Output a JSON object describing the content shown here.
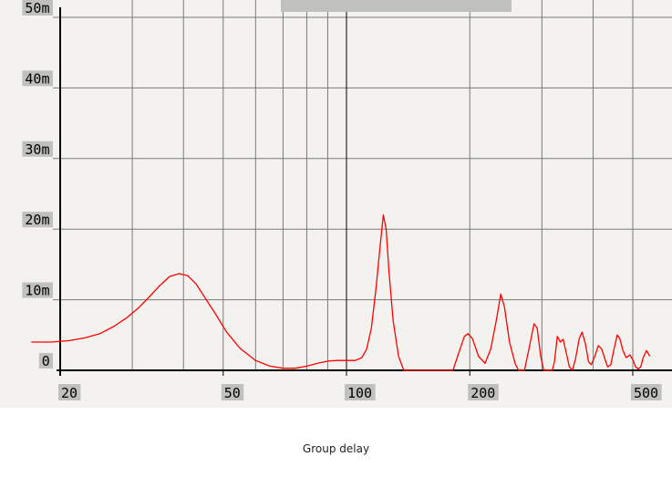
{
  "caption": "Group delay",
  "colors": {
    "background": "#f3f2ee",
    "grid": "#7a7a7a",
    "axis": "#000000",
    "series": "#ff0000",
    "label_bg": "#c0c0bc"
  },
  "chart_data": {
    "type": "line",
    "title": "",
    "xlabel": "",
    "ylabel": "",
    "x_scale": "log",
    "xlim": [
      17,
      550
    ],
    "ylim": [
      0,
      0.05
    ],
    "grid": true,
    "x_gridlines": [
      30,
      40,
      50,
      60,
      70,
      80,
      90,
      100,
      200,
      300,
      400,
      500
    ],
    "x_ticks": [
      {
        "value": 20,
        "label": "20"
      },
      {
        "value": 50,
        "label": "50"
      },
      {
        "value": 100,
        "label": "100"
      },
      {
        "value": 200,
        "label": "200"
      },
      {
        "value": 500,
        "label": "500"
      }
    ],
    "y_ticks": [
      {
        "value": 0,
        "label": "0"
      },
      {
        "value": 0.01,
        "label": "10m"
      },
      {
        "value": 0.02,
        "label": "20m"
      },
      {
        "value": 0.03,
        "label": "30m"
      },
      {
        "value": 0.04,
        "label": "40m"
      },
      {
        "value": 0.05,
        "label": "50m"
      }
    ],
    "series": [
      {
        "name": "",
        "color": "#ff0000",
        "points": [
          [
            17,
            0.004
          ],
          [
            19,
            0.004
          ],
          [
            21,
            0.0042
          ],
          [
            23,
            0.0046
          ],
          [
            25,
            0.0052
          ],
          [
            27,
            0.0062
          ],
          [
            29,
            0.0074
          ],
          [
            31,
            0.0088
          ],
          [
            33,
            0.0104
          ],
          [
            35,
            0.012
          ],
          [
            37,
            0.0133
          ],
          [
            39,
            0.0137
          ],
          [
            41,
            0.0134
          ],
          [
            43,
            0.0122
          ],
          [
            45,
            0.0104
          ],
          [
            48,
            0.0079
          ],
          [
            51,
            0.0054
          ],
          [
            55,
            0.0031
          ],
          [
            60,
            0.0014
          ],
          [
            65,
            0.0006
          ],
          [
            70,
            0.0003
          ],
          [
            75,
            0.0003
          ],
          [
            80,
            0.0006
          ],
          [
            85,
            0.001
          ],
          [
            90,
            0.0013
          ],
          [
            95,
            0.0014
          ],
          [
            100,
            0.0014
          ],
          [
            105,
            0.0014
          ],
          [
            109,
            0.0018
          ],
          [
            112,
            0.003
          ],
          [
            115,
            0.006
          ],
          [
            118,
            0.0115
          ],
          [
            121,
            0.018
          ],
          [
            123,
            0.022
          ],
          [
            125,
            0.02
          ],
          [
            127,
            0.014
          ],
          [
            130,
            0.007
          ],
          [
            134,
            0.002
          ],
          [
            138,
            0.0
          ],
          [
            175,
            0.0
          ],
          [
            182,
            0.0
          ],
          [
            188,
            0.0025
          ],
          [
            194,
            0.0048
          ],
          [
            198,
            0.0052
          ],
          [
            203,
            0.0045
          ],
          [
            210,
            0.002
          ],
          [
            218,
            0.001
          ],
          [
            225,
            0.003
          ],
          [
            232,
            0.007
          ],
          [
            238,
            0.0108
          ],
          [
            243,
            0.009
          ],
          [
            250,
            0.004
          ],
          [
            258,
            0.001
          ],
          [
            263,
            0.0
          ],
          [
            272,
            0.0
          ],
          [
            280,
            0.0035
          ],
          [
            287,
            0.0066
          ],
          [
            292,
            0.006
          ],
          [
            298,
            0.002
          ],
          [
            303,
            0.0
          ],
          [
            318,
            0.0
          ],
          [
            322,
            0.0012
          ],
          [
            327,
            0.0048
          ],
          [
            333,
            0.004
          ],
          [
            338,
            0.0044
          ],
          [
            344,
            0.0025
          ],
          [
            350,
            0.0005
          ],
          [
            356,
            0.0
          ],
          [
            362,
            0.0015
          ],
          [
            370,
            0.0045
          ],
          [
            376,
            0.0054
          ],
          [
            383,
            0.0038
          ],
          [
            390,
            0.0012
          ],
          [
            396,
            0.0008
          ],
          [
            404,
            0.002
          ],
          [
            412,
            0.0035
          ],
          [
            420,
            0.003
          ],
          [
            428,
            0.0015
          ],
          [
            434,
            0.0005
          ],
          [
            442,
            0.0008
          ],
          [
            450,
            0.003
          ],
          [
            458,
            0.005
          ],
          [
            465,
            0.0045
          ],
          [
            473,
            0.0028
          ],
          [
            482,
            0.0018
          ],
          [
            492,
            0.0022
          ],
          [
            500,
            0.0015
          ],
          [
            508,
            0.0005
          ],
          [
            515,
            0.0002
          ],
          [
            523,
            0.0005
          ],
          [
            530,
            0.0018
          ],
          [
            540,
            0.0028
          ],
          [
            550,
            0.002
          ]
        ]
      }
    ]
  }
}
